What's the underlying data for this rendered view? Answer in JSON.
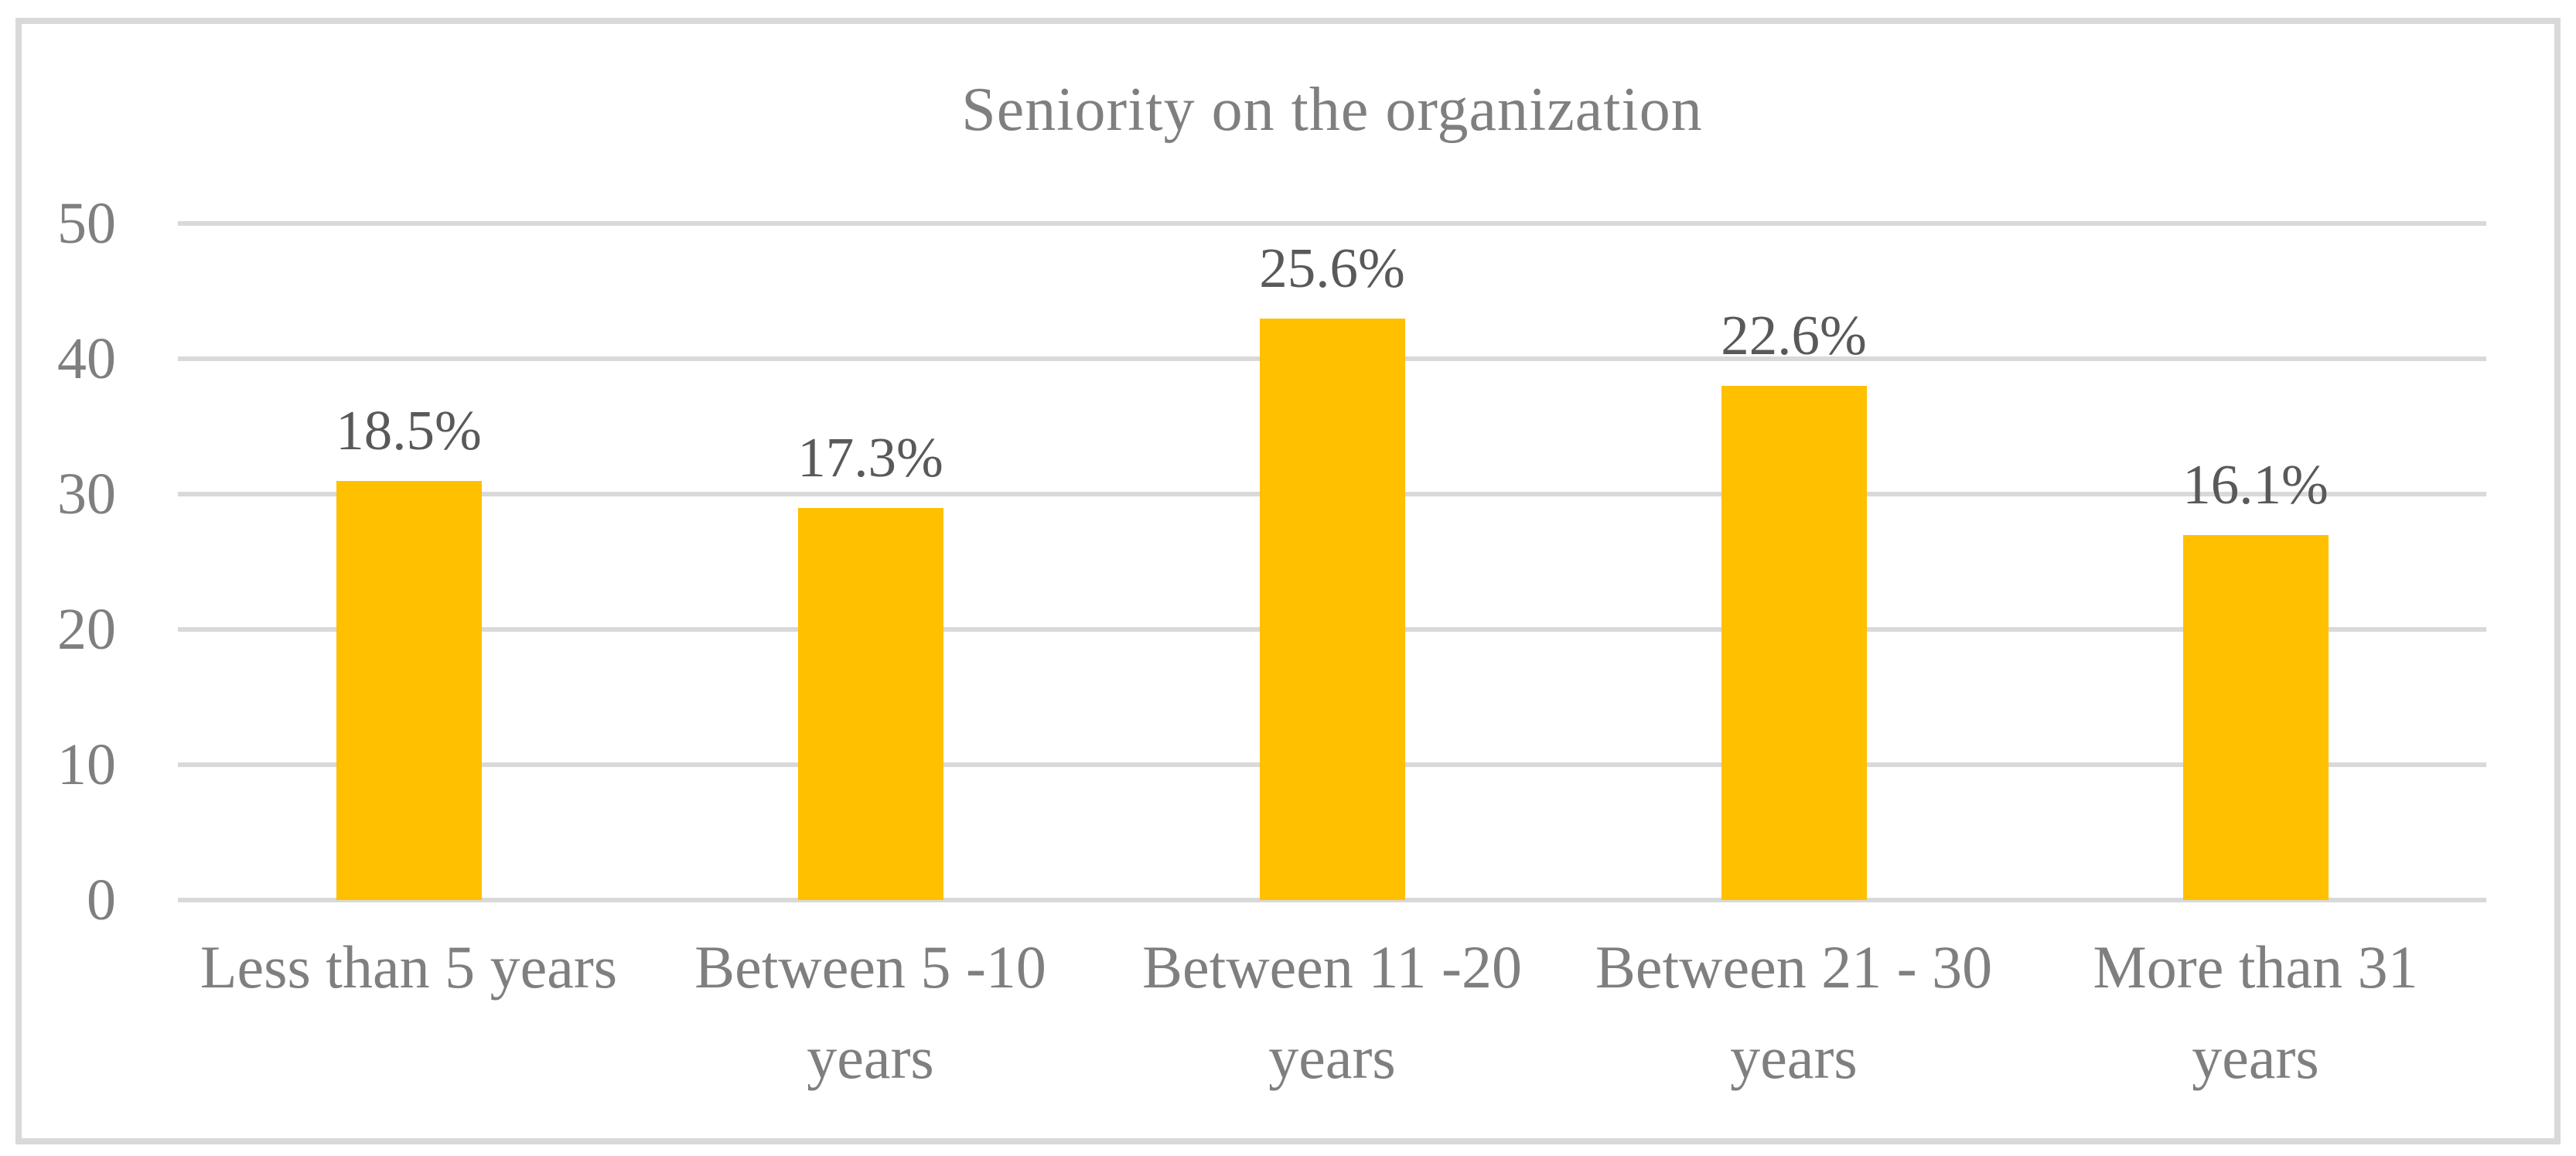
{
  "figure": {
    "background": "#FFFFFF",
    "border_color": "#D9D9D9"
  },
  "chart_data": {
    "type": "bar",
    "title": "Seniority on the organization",
    "categories": [
      "Less than 5 years",
      "Between 5 -10 years",
      "Between 11 -20 years",
      "Between 21 - 30 years",
      "More than 31 years"
    ],
    "category_display_lines": [
      [
        "Less than 5 years"
      ],
      [
        "Between 5 -10",
        "years"
      ],
      [
        "Between 11 -20",
        "years"
      ],
      [
        "Between 21 - 30",
        "years"
      ],
      [
        "More than 31",
        "years"
      ]
    ],
    "values": [
      31,
      29,
      43,
      38,
      27
    ],
    "data_labels": [
      "18.5%",
      "17.3%",
      "25.6%",
      "22.6%",
      "16.1%"
    ],
    "ylim": [
      0,
      50
    ],
    "yticks": [
      0,
      10,
      20,
      30,
      40,
      50
    ],
    "ytick_labels": [
      "0",
      "10",
      "20",
      "30",
      "40",
      "50"
    ],
    "xlabel": "",
    "ylabel": "",
    "grid": "horizontal",
    "legend": "none",
    "bar_color": "#FFC000",
    "data_label_color": "#595959",
    "axis_text_color": "#7F7F7F",
    "title_color": "#7F7F7F",
    "gridline_color": "#D9D9D9"
  }
}
